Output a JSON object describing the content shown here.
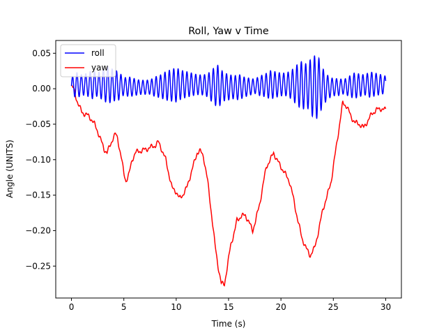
{
  "chart_data": {
    "type": "line",
    "title": "Roll, Yaw v Time",
    "xlabel": "Time (s)",
    "ylabel": "Angle (UNITS)",
    "xlim": [
      -1.5,
      31.5
    ],
    "ylim": [
      -0.295,
      0.068
    ],
    "xticks": [
      0,
      5,
      10,
      15,
      20,
      25,
      30
    ],
    "yticks": [
      0.05,
      0.0,
      -0.05,
      -0.1,
      -0.15,
      -0.2,
      -0.25
    ],
    "ytick_labels": [
      "0.05",
      "0.00",
      "−0.05",
      "−0.10",
      "−0.15",
      "−0.20",
      "−0.25"
    ],
    "grid": false,
    "legend": {
      "placement": "top-left"
    },
    "series": [
      {
        "name": "roll",
        "color": "#0000ff",
        "envelope": [
          [
            0,
            0.012
          ],
          [
            0.5,
            0.018
          ],
          [
            1,
            0.014
          ],
          [
            1.5,
            0.016
          ],
          [
            2,
            0.02
          ],
          [
            2.5,
            0.016
          ],
          [
            3,
            0.022
          ],
          [
            3.5,
            0.026
          ],
          [
            4,
            0.022
          ],
          [
            4.5,
            0.02
          ],
          [
            5,
            0.012
          ],
          [
            5.5,
            0.014
          ],
          [
            6,
            0.012
          ],
          [
            6.5,
            0.01
          ],
          [
            7,
            0.01
          ],
          [
            7.5,
            0.01
          ],
          [
            8,
            0.014
          ],
          [
            8.5,
            0.016
          ],
          [
            9,
            0.02
          ],
          [
            9.5,
            0.022
          ],
          [
            10,
            0.024
          ],
          [
            10.5,
            0.02
          ],
          [
            11,
            0.018
          ],
          [
            11.5,
            0.016
          ],
          [
            12,
            0.014
          ],
          [
            12.5,
            0.014
          ],
          [
            13,
            0.016
          ],
          [
            13.5,
            0.024
          ],
          [
            14,
            0.03
          ],
          [
            14.5,
            0.02
          ],
          [
            15,
            0.018
          ],
          [
            15.5,
            0.016
          ],
          [
            16,
            0.018
          ],
          [
            16.5,
            0.014
          ],
          [
            17,
            0.012
          ],
          [
            17.5,
            0.01
          ],
          [
            18,
            0.014
          ],
          [
            18.5,
            0.016
          ],
          [
            19,
            0.02
          ],
          [
            19.5,
            0.018
          ],
          [
            20,
            0.016
          ],
          [
            20.5,
            0.016
          ],
          [
            21,
            0.02
          ],
          [
            21.5,
            0.028
          ],
          [
            22,
            0.034
          ],
          [
            22.5,
            0.03
          ],
          [
            23,
            0.042
          ],
          [
            23.5,
            0.045
          ],
          [
            24,
            0.026
          ],
          [
            24.5,
            0.016
          ],
          [
            25,
            0.012
          ],
          [
            25.5,
            0.012
          ],
          [
            26,
            0.01
          ],
          [
            26.5,
            0.014
          ],
          [
            27,
            0.018
          ],
          [
            27.5,
            0.016
          ],
          [
            28,
            0.014
          ],
          [
            28.5,
            0.018
          ],
          [
            29,
            0.016
          ],
          [
            29.5,
            0.014
          ],
          [
            30,
            0.012
          ]
        ],
        "oscillation_period": 0.42
      },
      {
        "name": "yaw",
        "color": "#ff0000",
        "points": [
          [
            0,
            0.003
          ],
          [
            0.2,
            0.0
          ],
          [
            0.4,
            -0.01
          ],
          [
            0.6,
            -0.02
          ],
          [
            0.8,
            -0.027
          ],
          [
            1.0,
            -0.033
          ],
          [
            1.3,
            -0.036
          ],
          [
            1.6,
            -0.038
          ],
          [
            1.9,
            -0.043
          ],
          [
            2.2,
            -0.05
          ],
          [
            2.5,
            -0.06
          ],
          [
            2.8,
            -0.072
          ],
          [
            3.1,
            -0.085
          ],
          [
            3.4,
            -0.09
          ],
          [
            3.7,
            -0.08
          ],
          [
            4.0,
            -0.068
          ],
          [
            4.2,
            -0.064
          ],
          [
            4.4,
            -0.07
          ],
          [
            4.6,
            -0.085
          ],
          [
            4.8,
            -0.1
          ],
          [
            5.0,
            -0.12
          ],
          [
            5.2,
            -0.13
          ],
          [
            5.5,
            -0.12
          ],
          [
            5.8,
            -0.1
          ],
          [
            6.1,
            -0.09
          ],
          [
            6.5,
            -0.088
          ],
          [
            7.0,
            -0.086
          ],
          [
            7.5,
            -0.083
          ],
          [
            8.0,
            -0.08
          ],
          [
            8.3,
            -0.075
          ],
          [
            8.6,
            -0.085
          ],
          [
            9.0,
            -0.1
          ],
          [
            9.3,
            -0.12
          ],
          [
            9.6,
            -0.14
          ],
          [
            10.0,
            -0.145
          ],
          [
            10.3,
            -0.155
          ],
          [
            10.6,
            -0.15
          ],
          [
            11.0,
            -0.14
          ],
          [
            11.5,
            -0.115
          ],
          [
            12.0,
            -0.09
          ],
          [
            12.3,
            -0.088
          ],
          [
            12.6,
            -0.095
          ],
          [
            13.0,
            -0.13
          ],
          [
            13.4,
            -0.18
          ],
          [
            13.7,
            -0.22
          ],
          [
            14.0,
            -0.25
          ],
          [
            14.3,
            -0.275
          ],
          [
            14.6,
            -0.275
          ],
          [
            14.9,
            -0.25
          ],
          [
            15.2,
            -0.22
          ],
          [
            15.6,
            -0.2
          ],
          [
            15.8,
            -0.185
          ],
          [
            16.2,
            -0.18
          ],
          [
            16.6,
            -0.178
          ],
          [
            17.0,
            -0.19
          ],
          [
            17.3,
            -0.2
          ],
          [
            17.6,
            -0.185
          ],
          [
            18.0,
            -0.16
          ],
          [
            18.3,
            -0.135
          ],
          [
            18.6,
            -0.11
          ],
          [
            19.0,
            -0.1
          ],
          [
            19.3,
            -0.09
          ],
          [
            19.6,
            -0.1
          ],
          [
            20.0,
            -0.11
          ],
          [
            20.4,
            -0.12
          ],
          [
            20.8,
            -0.13
          ],
          [
            21.2,
            -0.155
          ],
          [
            21.6,
            -0.185
          ],
          [
            22.0,
            -0.21
          ],
          [
            22.4,
            -0.225
          ],
          [
            22.8,
            -0.235
          ],
          [
            23.2,
            -0.225
          ],
          [
            23.6,
            -0.2
          ],
          [
            24.0,
            -0.17
          ],
          [
            24.4,
            -0.152
          ],
          [
            24.8,
            -0.13
          ],
          [
            25.2,
            -0.09
          ],
          [
            25.6,
            -0.05
          ],
          [
            25.9,
            -0.02
          ],
          [
            26.3,
            -0.025
          ],
          [
            26.7,
            -0.04
          ],
          [
            27.1,
            -0.048
          ],
          [
            27.5,
            -0.05
          ],
          [
            27.9,
            -0.055
          ],
          [
            28.3,
            -0.045
          ],
          [
            28.7,
            -0.035
          ],
          [
            29.1,
            -0.03
          ],
          [
            29.5,
            -0.028
          ],
          [
            30.0,
            -0.03
          ]
        ]
      }
    ]
  }
}
